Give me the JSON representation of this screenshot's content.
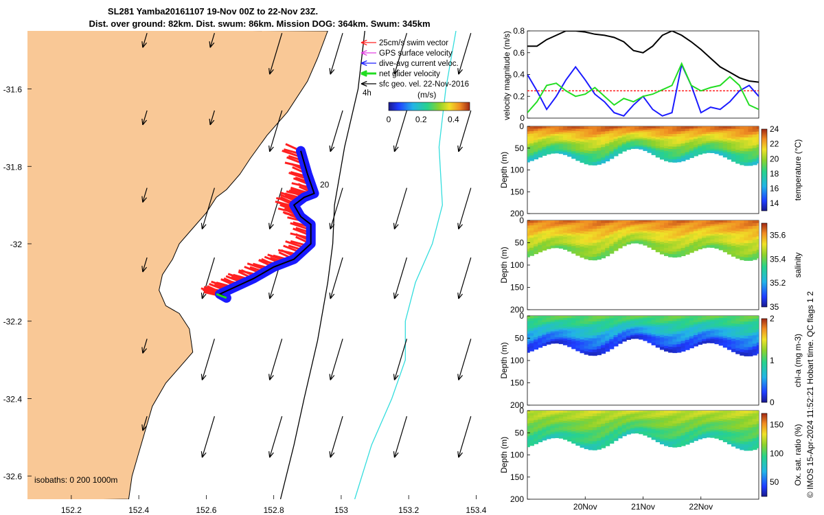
{
  "title": {
    "line1": "SL281 Yamba20161107 19-Nov 00Z to 22-Nov 23Z.",
    "line2": "Dist. over ground: 82km. Dist. swum: 86km. Mission DOG: 364km. Swum: 345km"
  },
  "credit": "© IMOS 15-Apr-2024 11:52:21 Hobart time. QC flags 1  2",
  "colors": {
    "land": "#f9c896",
    "swim": "#ff2020",
    "gps": "#e040e0",
    "diveavg": "#1a1aff",
    "net": "#22dd22",
    "sfc": "#000000",
    "iso200": "#000000",
    "iso1000": "#33dddd"
  },
  "chart_data": [
    {
      "name": "map",
      "type": "scatter",
      "xlabel": "",
      "ylabel": "",
      "xlim": [
        152.07,
        153.45
      ],
      "ylim": [
        -32.66,
        -31.45
      ],
      "xticks": [
        152.2,
        152.4,
        152.6,
        152.8,
        153,
        153.2,
        153.4
      ],
      "xtick_labels": [
        "152.2",
        "152.4",
        "152.6",
        "152.8",
        "153",
        "153.2",
        "153.4"
      ],
      "yticks": [
        -31.6,
        -31.8,
        -32,
        -32.2,
        -32.4,
        -32.6
      ],
      "ytick_labels": [
        "-31.6",
        "-31.8",
        "-32",
        "-32.2",
        "-32.4",
        "-32.6"
      ],
      "legend": [
        {
          "label": "25cm/s swim vector",
          "color": "#ff2020"
        },
        {
          "label": "GPS surface velocity",
          "color": "#e040e0"
        },
        {
          "label": "dive-avg current veloc.",
          "color": "#1a1aff"
        },
        {
          "label": "net glider velocity",
          "color": "#22dd22"
        },
        {
          "label": "sfc geo. vel. 22-Nov-2016",
          "color": "#000000"
        }
      ],
      "arrow_scale_label": "4h",
      "colorbar": {
        "label": "(m/s)",
        "ticks": [
          0,
          0.2,
          0.4
        ],
        "tick_labels": [
          "0",
          "0.2",
          "0.4"
        ],
        "range": [
          0,
          0.5
        ]
      },
      "isobath_text": "isobaths: 0   200  1000m",
      "annotation": "20",
      "coast": [
        [
          152.96,
          -31.45
        ],
        [
          152.93,
          -31.52
        ],
        [
          152.9,
          -31.58
        ],
        [
          152.84,
          -31.66
        ],
        [
          152.78,
          -31.72
        ],
        [
          152.73,
          -31.78
        ],
        [
          152.7,
          -31.82
        ],
        [
          152.66,
          -31.86
        ],
        [
          152.63,
          -31.88
        ],
        [
          152.6,
          -31.92
        ],
        [
          152.56,
          -31.96
        ],
        [
          152.52,
          -32.0
        ],
        [
          152.5,
          -32.04
        ],
        [
          152.47,
          -32.08
        ],
        [
          152.46,
          -32.12
        ],
        [
          152.48,
          -32.16
        ],
        [
          152.52,
          -32.18
        ],
        [
          152.55,
          -32.22
        ],
        [
          152.56,
          -32.28
        ],
        [
          152.52,
          -32.32
        ],
        [
          152.48,
          -32.36
        ],
        [
          152.44,
          -32.42
        ],
        [
          152.42,
          -32.48
        ],
        [
          152.4,
          -32.54
        ],
        [
          152.38,
          -32.6
        ],
        [
          152.37,
          -32.66
        ]
      ],
      "iso200": [
        [
          153.07,
          -31.45
        ],
        [
          153.05,
          -31.6
        ],
        [
          153.01,
          -31.75
        ],
        [
          152.98,
          -31.9
        ],
        [
          152.975,
          -32.0
        ],
        [
          152.96,
          -32.1
        ],
        [
          152.93,
          -32.25
        ],
        [
          152.89,
          -32.4
        ],
        [
          152.86,
          -32.52
        ],
        [
          152.82,
          -32.66
        ]
      ],
      "iso1000": [
        [
          153.34,
          -31.45
        ],
        [
          153.31,
          -31.6
        ],
        [
          153.29,
          -31.75
        ],
        [
          153.3,
          -31.9
        ],
        [
          153.27,
          -32.0
        ],
        [
          153.22,
          -32.1
        ],
        [
          153.19,
          -32.2
        ],
        [
          153.19,
          -32.3
        ],
        [
          153.15,
          -32.4
        ],
        [
          153.09,
          -32.52
        ],
        [
          153.04,
          -32.66
        ]
      ],
      "track": [
        [
          152.88,
          -31.76
        ],
        [
          152.9,
          -31.82
        ],
        [
          152.92,
          -31.87
        ],
        [
          152.89,
          -31.88
        ],
        [
          152.86,
          -31.9
        ],
        [
          152.88,
          -31.93
        ],
        [
          152.91,
          -31.95
        ],
        [
          152.91,
          -32.0
        ],
        [
          152.86,
          -32.04
        ],
        [
          152.8,
          -32.06
        ],
        [
          152.74,
          -32.09
        ],
        [
          152.69,
          -32.11
        ],
        [
          152.64,
          -32.13
        ],
        [
          152.66,
          -32.14
        ]
      ],
      "geo_vectors_u": -0.06,
      "geo_vectors_v": -0.14
    },
    {
      "name": "velocity",
      "type": "line",
      "ylabel": "velocity magnitude (m/s)",
      "ylim": [
        0,
        0.8
      ],
      "yticks": [
        0,
        0.2,
        0.4,
        0.6,
        0.8
      ],
      "ytick_labels": [
        "0",
        "0.2",
        "0.4",
        "0.6",
        "0.8"
      ],
      "x": [
        0,
        4,
        8,
        12,
        16,
        20,
        24,
        28,
        32,
        36,
        40,
        44,
        48,
        52,
        56,
        60,
        64,
        68,
        72,
        76,
        80,
        84,
        88,
        92,
        96
      ],
      "series": [
        {
          "name": "sfc",
          "color": "#000000",
          "values": [
            0.66,
            0.66,
            0.72,
            0.76,
            0.8,
            0.8,
            0.79,
            0.77,
            0.76,
            0.74,
            0.7,
            0.62,
            0.6,
            0.66,
            0.76,
            0.8,
            0.76,
            0.7,
            0.63,
            0.55,
            0.47,
            0.42,
            0.37,
            0.34,
            0.33
          ]
        },
        {
          "name": "swim",
          "color": "#ff2020",
          "values": [
            0.25,
            0.25,
            0.25,
            0.25,
            0.25,
            0.25,
            0.25,
            0.25,
            0.25,
            0.25,
            0.25,
            0.25,
            0.25,
            0.25,
            0.25,
            0.25,
            0.25,
            0.25,
            0.25,
            0.25,
            0.25,
            0.25,
            0.25,
            0.25,
            0.25
          ]
        },
        {
          "name": "dive-avg",
          "color": "#1a1aff",
          "values": [
            0.4,
            0.25,
            0.08,
            0.2,
            0.35,
            0.47,
            0.35,
            0.22,
            0.15,
            0.05,
            0.02,
            0.12,
            0.2,
            0.08,
            0.02,
            0.05,
            0.49,
            0.3,
            0.05,
            0.1,
            0.08,
            0.15,
            0.25,
            0.3,
            0.2
          ]
        },
        {
          "name": "net",
          "color": "#22dd22",
          "values": [
            0.05,
            0.15,
            0.3,
            0.32,
            0.25,
            0.2,
            0.22,
            0.28,
            0.2,
            0.12,
            0.18,
            0.15,
            0.2,
            0.22,
            0.26,
            0.3,
            0.5,
            0.3,
            0.25,
            0.28,
            0.3,
            0.38,
            0.3,
            0.12,
            0.08
          ]
        }
      ]
    },
    {
      "name": "temperature",
      "type": "heatmap",
      "ylabel": "Depth (m)",
      "cbar_label": "temperature (°C)",
      "ylim": [
        200,
        0
      ],
      "yticks": [
        0,
        50,
        100,
        150,
        200
      ],
      "ytick_labels": [
        "0",
        "50",
        "100",
        "150",
        "200"
      ],
      "cbar_ticks": [
        14,
        16,
        18,
        20,
        22,
        24
      ],
      "cbar_tick_labels": [
        "14",
        "16",
        "18",
        "20",
        "22",
        "24"
      ],
      "cbar_range": [
        13,
        24
      ],
      "surface_value": 23,
      "deep_value": 16.5
    },
    {
      "name": "salinity",
      "type": "heatmap",
      "ylabel": "Depth (m)",
      "cbar_label": "salinity",
      "ylim": [
        200,
        0
      ],
      "yticks": [
        0,
        50,
        100,
        150,
        200
      ],
      "ytick_labels": [
        "0",
        "50",
        "100",
        "150",
        "200"
      ],
      "cbar_ticks": [
        35,
        35.2,
        35.4,
        35.6
      ],
      "cbar_tick_labels": [
        "35",
        "35.2",
        "35.4",
        "35.6"
      ],
      "cbar_range": [
        35,
        35.7
      ],
      "surface_value": 35.62,
      "deep_value": 35.35
    },
    {
      "name": "chl-a",
      "type": "heatmap",
      "ylabel": "Depth (m)",
      "cbar_label": "chl-a (mg m-3)",
      "ylim": [
        200,
        0
      ],
      "yticks": [
        0,
        50,
        100,
        150,
        200
      ],
      "ytick_labels": [
        "0",
        "50",
        "100",
        "150",
        "200"
      ],
      "cbar_ticks": [
        0,
        1,
        2
      ],
      "cbar_tick_labels": [
        "0",
        "1",
        "2"
      ],
      "cbar_range": [
        0,
        2
      ],
      "surface_value": 1.0,
      "deep_value": 0.15
    },
    {
      "name": "oxygen",
      "type": "heatmap",
      "ylabel": "Depth (m)",
      "cbar_label": "Ox. sat. ratio (%)",
      "ylim": [
        200,
        0
      ],
      "yticks": [
        0,
        50,
        100,
        150,
        200
      ],
      "ytick_labels": [
        "0",
        "50",
        "100",
        "150",
        "200"
      ],
      "cbar_ticks": [
        50,
        100,
        150
      ],
      "cbar_tick_labels": [
        "50",
        "100",
        "150"
      ],
      "cbar_range": [
        25,
        170
      ],
      "surface_value": 120,
      "deep_value": 78,
      "xticks": [
        24,
        48,
        72
      ],
      "xtick_labels": [
        "20Nov",
        "21Nov",
        "22Nov"
      ]
    }
  ]
}
